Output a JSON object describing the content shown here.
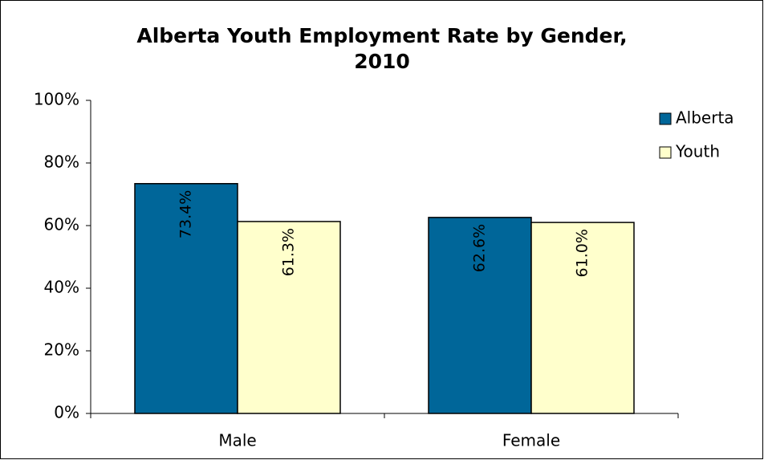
{
  "chart_data": {
    "type": "bar",
    "title": [
      "Alberta Youth Employment Rate by Gender,",
      "2010"
    ],
    "categories": [
      "Male",
      "Female"
    ],
    "series": [
      {
        "name": "Alberta",
        "color": "#006699",
        "label_color": "#ffffff",
        "values": [
          73.4,
          62.6
        ],
        "value_labels": [
          "73.4%",
          "62.6%"
        ]
      },
      {
        "name": "Youth",
        "color": "#ffffcc",
        "label_color": "#000000",
        "values": [
          61.3,
          61.0
        ],
        "value_labels": [
          "61.3%",
          "61.0%"
        ]
      }
    ],
    "ylim": [
      0,
      100
    ],
    "yticks": [
      {
        "value": 0,
        "label": "0%"
      },
      {
        "value": 20,
        "label": "20%"
      },
      {
        "value": 40,
        "label": "40%"
      },
      {
        "value": 60,
        "label": "60%"
      },
      {
        "value": 80,
        "label": "80%"
      },
      {
        "value": 100,
        "label": "100%"
      }
    ],
    "legend": "right"
  }
}
